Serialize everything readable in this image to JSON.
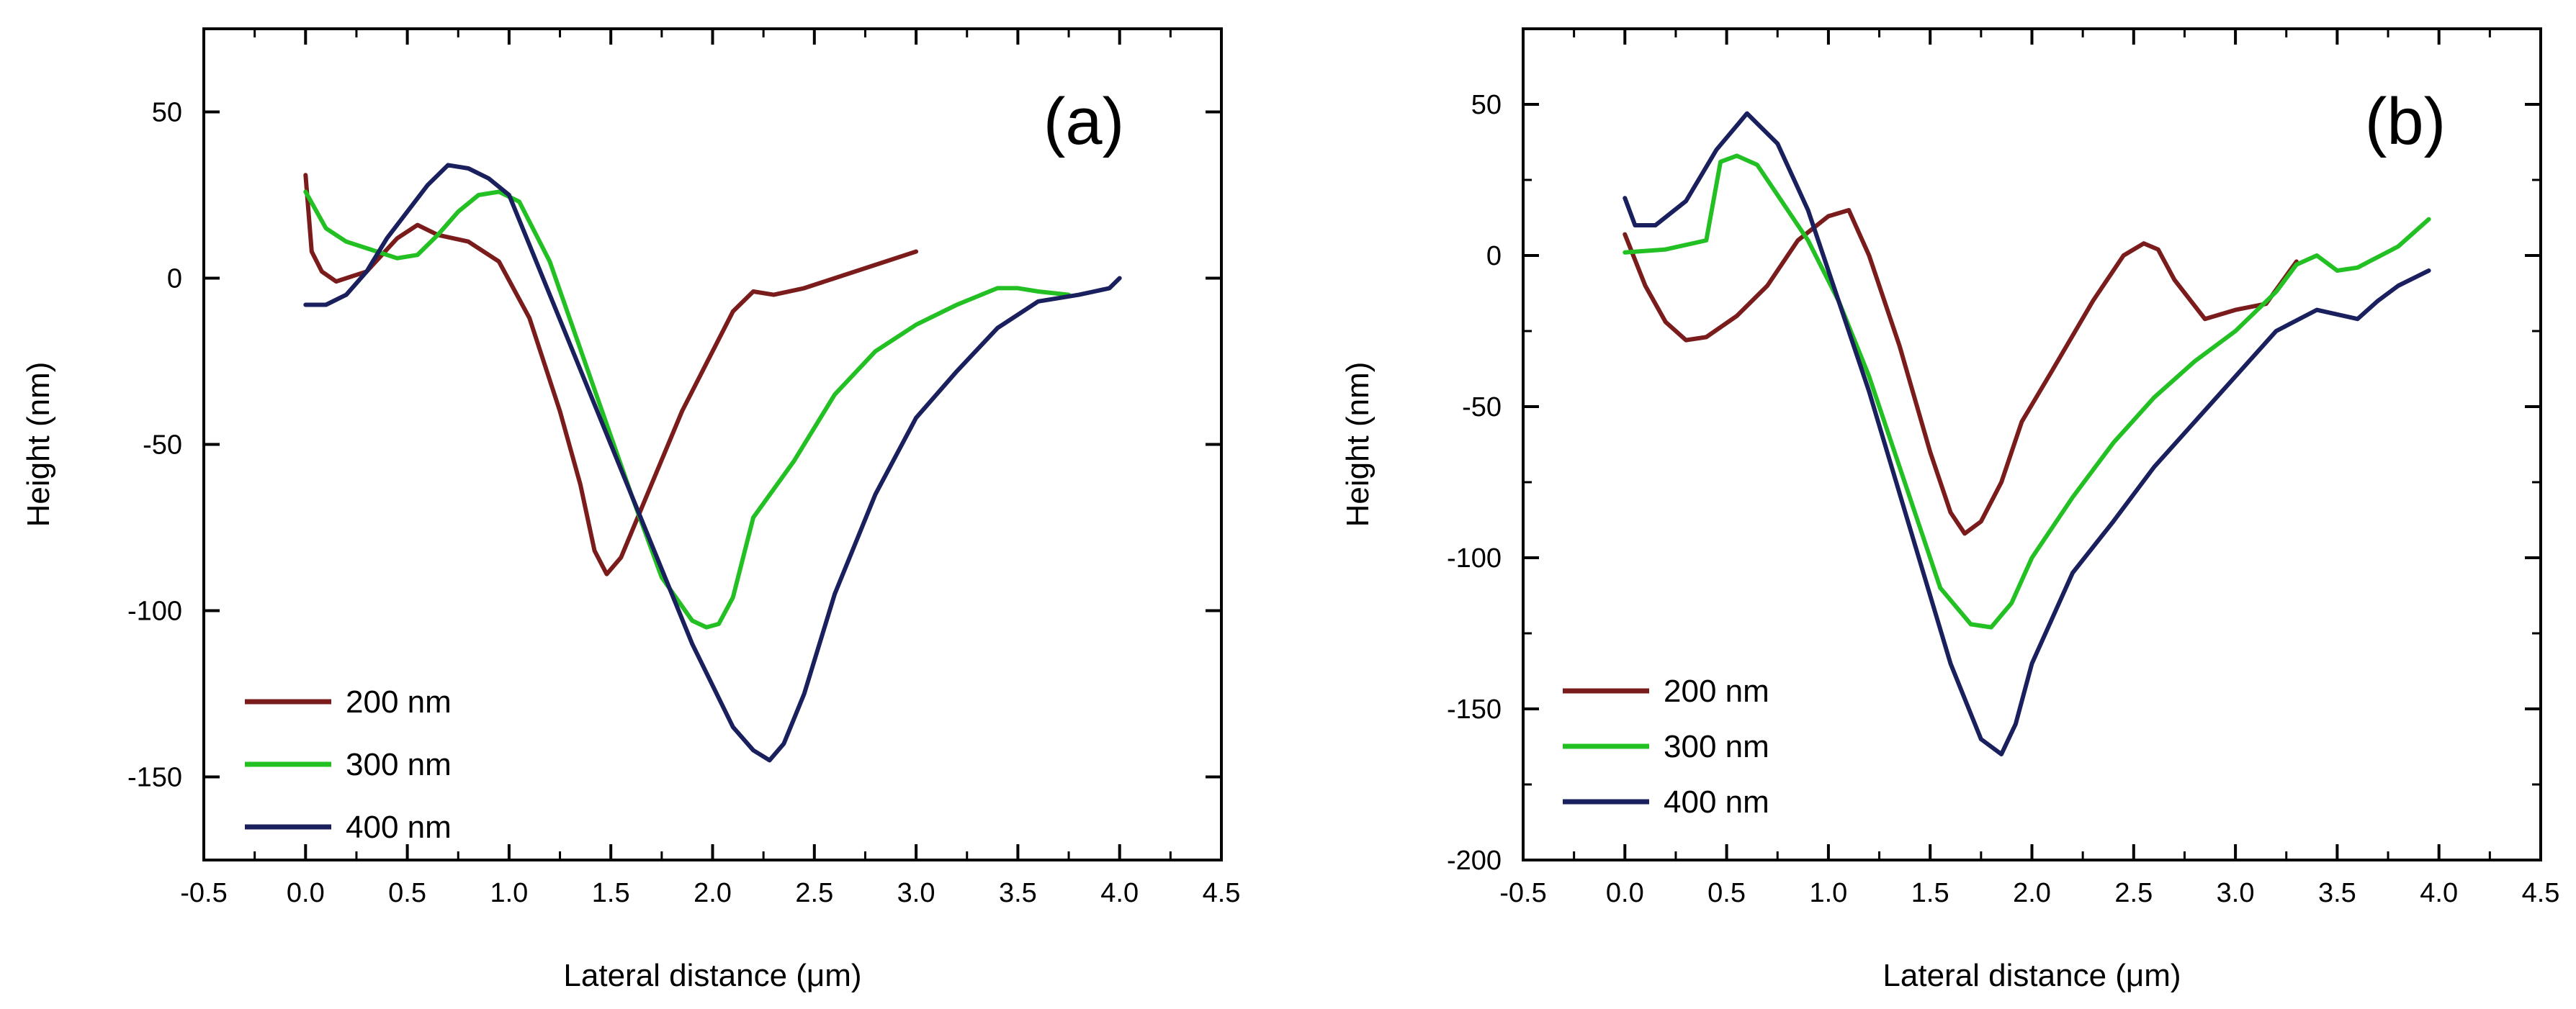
{
  "chart_data": [
    {
      "type": "line",
      "panel_label": "(a)",
      "xlabel": "Lateral distance (μm)",
      "ylabel": "Height (nm)",
      "xlim": [
        -0.5,
        4.5
      ],
      "ylim": [
        -175,
        75
      ],
      "xticks": [
        -0.5,
        0.0,
        0.5,
        1.0,
        1.5,
        2.0,
        2.5,
        3.0,
        3.5,
        4.0,
        4.5
      ],
      "xtick_labels": [
        "-0.5",
        "0.0",
        "0.5",
        "1.0",
        "1.5",
        "2.0",
        "2.5",
        "3.0",
        "3.5",
        "4.0",
        "4.5"
      ],
      "yticks": [
        50,
        0,
        -50,
        -100,
        -150
      ],
      "ytick_labels": [
        "50",
        "0",
        "-50",
        "-100",
        "-150"
      ],
      "legend_position": "bottom-left",
      "series": [
        {
          "name": "200 nm",
          "color": "#7b1c1c",
          "x": [
            0.0,
            0.03,
            0.08,
            0.15,
            0.3,
            0.45,
            0.55,
            0.65,
            0.8,
            0.95,
            1.1,
            1.25,
            1.35,
            1.42,
            1.48,
            1.55,
            1.7,
            1.85,
            2.0,
            2.1,
            2.2,
            2.3,
            2.45,
            2.6,
            2.8,
            3.0
          ],
          "y": [
            31,
            8,
            2,
            -1,
            2,
            12,
            16,
            13,
            11,
            5,
            -12,
            -40,
            -62,
            -82,
            -89,
            -84,
            -62,
            -40,
            -22,
            -10,
            -4,
            -5,
            -3,
            0,
            4,
            8
          ]
        },
        {
          "name": "300 nm",
          "color": "#22c022",
          "x": [
            0.0,
            0.1,
            0.2,
            0.3,
            0.45,
            0.55,
            0.65,
            0.75,
            0.85,
            0.95,
            1.05,
            1.2,
            1.4,
            1.6,
            1.75,
            1.9,
            1.97,
            2.03,
            2.1,
            2.2,
            2.4,
            2.6,
            2.8,
            3.0,
            3.2,
            3.4,
            3.5,
            3.6,
            3.75
          ],
          "y": [
            26,
            15,
            11,
            9,
            6,
            7,
            13,
            20,
            25,
            26,
            23,
            5,
            -30,
            -65,
            -90,
            -103,
            -105,
            -104,
            -96,
            -72,
            -55,
            -35,
            -22,
            -14,
            -8,
            -3,
            -3,
            -4,
            -5
          ]
        },
        {
          "name": "400 nm",
          "color": "#1a1f5e",
          "x": [
            0.0,
            0.1,
            0.2,
            0.3,
            0.4,
            0.5,
            0.6,
            0.7,
            0.8,
            0.9,
            1.0,
            1.1,
            1.3,
            1.5,
            1.7,
            1.9,
            2.1,
            2.2,
            2.28,
            2.35,
            2.45,
            2.6,
            2.8,
            3.0,
            3.2,
            3.4,
            3.6,
            3.8,
            3.95,
            4.0
          ],
          "y": [
            -8,
            -8,
            -5,
            2,
            12,
            20,
            28,
            34,
            33,
            30,
            25,
            10,
            -20,
            -50,
            -80,
            -110,
            -135,
            -142,
            -145,
            -140,
            -125,
            -95,
            -65,
            -42,
            -28,
            -15,
            -7,
            -5,
            -3,
            0
          ]
        }
      ]
    },
    {
      "type": "line",
      "panel_label": "(b)",
      "xlabel": "Lateral distance (μm)",
      "ylabel": "Height (nm)",
      "xlim": [
        -0.5,
        4.5
      ],
      "ylim": [
        -200,
        75
      ],
      "xticks": [
        -0.5,
        0.0,
        0.5,
        1.0,
        1.5,
        2.0,
        2.5,
        3.0,
        3.5,
        4.0,
        4.5
      ],
      "xtick_labels": [
        "-0.5",
        "0.0",
        "0.5",
        "1.0",
        "1.5",
        "2.0",
        "2.5",
        "3.0",
        "3.5",
        "4.0",
        "4.5"
      ],
      "yticks": [
        50,
        0,
        -50,
        -100,
        -150,
        -200
      ],
      "ytick_labels": [
        "50",
        "0",
        "-50",
        "-100",
        "-150",
        "-200"
      ],
      "legend_position": "bottom-left",
      "series": [
        {
          "name": "200 nm",
          "color": "#7b1c1c",
          "x": [
            0.0,
            0.1,
            0.2,
            0.3,
            0.4,
            0.55,
            0.7,
            0.85,
            1.0,
            1.1,
            1.2,
            1.35,
            1.5,
            1.6,
            1.67,
            1.75,
            1.85,
            1.95,
            2.1,
            2.3,
            2.45,
            2.55,
            2.62,
            2.7,
            2.85,
            3.0,
            3.15,
            3.3
          ],
          "y": [
            7,
            -10,
            -22,
            -28,
            -27,
            -20,
            -10,
            5,
            13,
            15,
            0,
            -30,
            -65,
            -85,
            -92,
            -88,
            -75,
            -55,
            -38,
            -15,
            0,
            4,
            2,
            -8,
            -21,
            -18,
            -16,
            -2
          ]
        },
        {
          "name": "300 nm",
          "color": "#22c022",
          "x": [
            0.0,
            0.2,
            0.4,
            0.47,
            0.55,
            0.65,
            0.75,
            0.9,
            1.05,
            1.2,
            1.4,
            1.55,
            1.7,
            1.8,
            1.9,
            2.0,
            2.2,
            2.4,
            2.6,
            2.8,
            3.0,
            3.2,
            3.3,
            3.4,
            3.5,
            3.6,
            3.8,
            3.95
          ],
          "y": [
            1,
            2,
            5,
            31,
            33,
            30,
            20,
            5,
            -15,
            -40,
            -80,
            -110,
            -122,
            -123,
            -115,
            -100,
            -80,
            -62,
            -47,
            -35,
            -25,
            -12,
            -3,
            0,
            -5,
            -4,
            3,
            12
          ]
        },
        {
          "name": "400 nm",
          "color": "#1a1f5e",
          "x": [
            0.0,
            0.05,
            0.15,
            0.3,
            0.45,
            0.6,
            0.75,
            0.9,
            1.05,
            1.2,
            1.4,
            1.6,
            1.75,
            1.85,
            1.92,
            2.0,
            2.2,
            2.4,
            2.6,
            2.8,
            3.0,
            3.2,
            3.4,
            3.6,
            3.7,
            3.8,
            3.95
          ],
          "y": [
            19,
            10,
            10,
            18,
            35,
            47,
            37,
            15,
            -15,
            -45,
            -90,
            -135,
            -160,
            -165,
            -155,
            -135,
            -105,
            -88,
            -70,
            -55,
            -40,
            -25,
            -18,
            -21,
            -15,
            -10,
            -5
          ]
        }
      ]
    }
  ]
}
